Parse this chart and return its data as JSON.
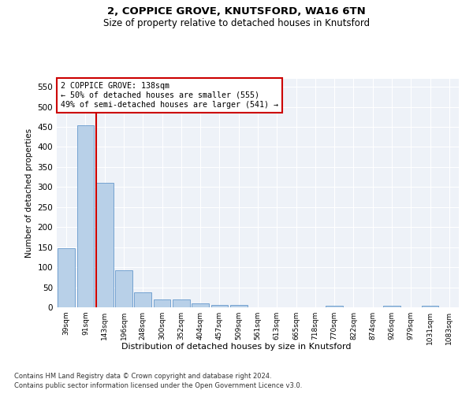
{
  "title1": "2, COPPICE GROVE, KNUTSFORD, WA16 6TN",
  "title2": "Size of property relative to detached houses in Knutsford",
  "xlabel": "Distribution of detached houses by size in Knutsford",
  "ylabel": "Number of detached properties",
  "categories": [
    "39sqm",
    "91sqm",
    "143sqm",
    "196sqm",
    "248sqm",
    "300sqm",
    "352sqm",
    "404sqm",
    "457sqm",
    "509sqm",
    "561sqm",
    "613sqm",
    "665sqm",
    "718sqm",
    "770sqm",
    "822sqm",
    "874sqm",
    "926sqm",
    "979sqm",
    "1031sqm",
    "1083sqm"
  ],
  "values": [
    148,
    455,
    310,
    92,
    38,
    19,
    20,
    10,
    5,
    6,
    0,
    0,
    0,
    0,
    4,
    0,
    0,
    4,
    0,
    4,
    0
  ],
  "bar_color": "#b8d0e8",
  "bar_edge_color": "#6699cc",
  "vline_x_index": 2,
  "vline_color": "#cc0000",
  "annotation_box_color": "#cc0000",
  "annotation_lines": [
    "2 COPPICE GROVE: 138sqm",
    "← 50% of detached houses are smaller (555)",
    "49% of semi-detached houses are larger (541) →"
  ],
  "ylim": [
    0,
    570
  ],
  "yticks": [
    0,
    50,
    100,
    150,
    200,
    250,
    300,
    350,
    400,
    450,
    500,
    550
  ],
  "footnote1": "Contains HM Land Registry data © Crown copyright and database right 2024.",
  "footnote2": "Contains public sector information licensed under the Open Government Licence v3.0.",
  "bg_color": "#eef2f8",
  "fig_width": 6.0,
  "fig_height": 5.0,
  "fig_dpi": 100
}
